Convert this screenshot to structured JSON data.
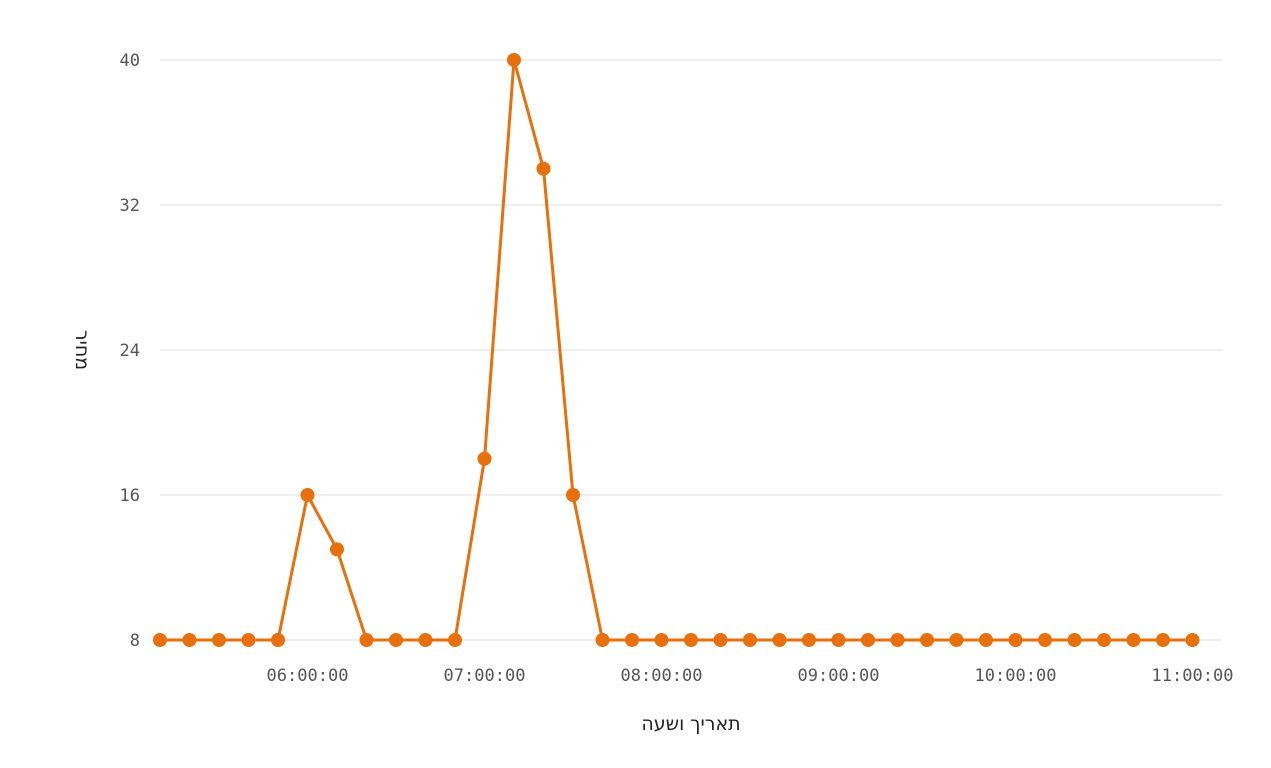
{
  "chart_data": {
    "type": "line",
    "xlabel": "תאריך ושעה",
    "ylabel": "מחיר",
    "x_ticks": [
      "06:00:00",
      "07:00:00",
      "08:00:00",
      "09:00:00",
      "10:00:00",
      "11:00:00"
    ],
    "y_ticks": [
      "8",
      "16",
      "24",
      "32",
      "40"
    ],
    "ylim": [
      8,
      40
    ],
    "xlim": [
      "05:10:00",
      "11:10:00"
    ],
    "grid": "horizontal",
    "color": "#e8700c",
    "series": [
      {
        "x": [
          "05:10:00",
          "05:20:00",
          "05:30:00",
          "05:40:00",
          "05:50:00",
          "06:00:00",
          "06:10:00",
          "06:20:00",
          "06:30:00",
          "06:40:00",
          "06:50:00",
          "07:00:00",
          "07:10:00",
          "07:20:00",
          "07:30:00",
          "07:40:00",
          "07:50:00",
          "08:00:00",
          "08:10:00",
          "08:20:00",
          "08:30:00",
          "08:40:00",
          "08:50:00",
          "09:00:00",
          "09:10:00",
          "09:20:00",
          "09:30:00",
          "09:40:00",
          "09:50:00",
          "10:00:00",
          "10:10:00",
          "10:20:00",
          "10:30:00",
          "10:40:00",
          "10:50:00",
          "11:00:00"
        ],
        "values": [
          8,
          8,
          8,
          8,
          8,
          16,
          13,
          8,
          8,
          8,
          8,
          18,
          40,
          34,
          16,
          8,
          8,
          8,
          8,
          8,
          8,
          8,
          8,
          8,
          8,
          8,
          8,
          8,
          8,
          8,
          8,
          8,
          8,
          8,
          8,
          8
        ]
      }
    ]
  }
}
